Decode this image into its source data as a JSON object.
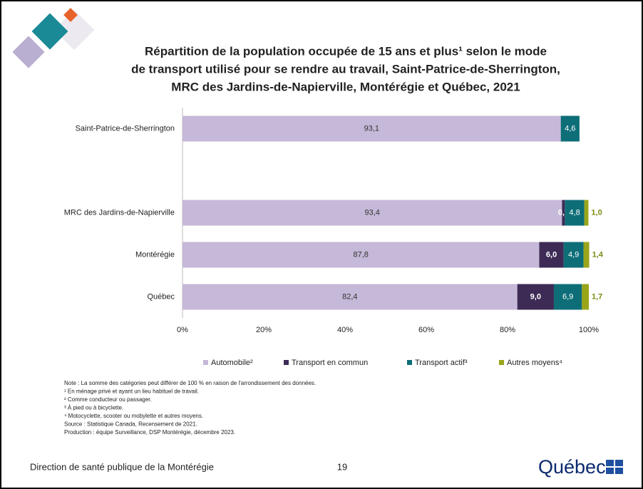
{
  "chart_data": {
    "type": "stacked-bar-horizontal",
    "title": [
      "Répartition de la population occupée de 15 ans et plus¹ selon le mode",
      "de transport utilisé pour se rendre au travail, Saint-Patrice-de-Sherrington,",
      "MRC des Jardins-de-Napierville, Montérégie et Québec, 2021"
    ],
    "categories": [
      "Saint-Patrice-de-Sherrington",
      null,
      "MRC des Jardins-de-Napierville",
      "Montérégie",
      "Québec"
    ],
    "series": [
      {
        "name": "Automobile²",
        "color": "#c6b8d8",
        "values": [
          93.1,
          null,
          93.4,
          87.8,
          82.4
        ],
        "value_labels": [
          "93,1",
          null,
          "93,4",
          "87,8",
          "82,4"
        ]
      },
      {
        "name": "Transport en commun",
        "color": "#3d2b56",
        "values": [
          null,
          null,
          0.7,
          6.0,
          9.0
        ],
        "value_labels": [
          null,
          null,
          "0,7",
          "6,0",
          "9,0"
        ]
      },
      {
        "name": "Transport actif³",
        "color": "#0d6e78",
        "values": [
          4.6,
          null,
          4.8,
          4.9,
          6.9
        ],
        "value_labels": [
          "4,6",
          null,
          "4,8",
          "4,9",
          "6,9"
        ]
      },
      {
        "name": "Autres moyens⁴",
        "color": "#9aa51a",
        "values": [
          null,
          null,
          1.0,
          1.4,
          1.7
        ],
        "value_labels": [
          null,
          null,
          "1,0",
          "1,4",
          "1,7"
        ]
      }
    ],
    "xlim": [
      0,
      100
    ],
    "xticks": [
      {
        "value": 0,
        "label": "0%"
      },
      {
        "value": 20,
        "label": "20%"
      },
      {
        "value": 40,
        "label": "40%"
      },
      {
        "value": 60,
        "label": "60%"
      },
      {
        "value": 80,
        "label": "80%"
      },
      {
        "value": 100,
        "label": "100%"
      }
    ],
    "grid": false,
    "legend": "bottom"
  },
  "notes": [
    "Note : La somme des catégories peut différer de 100 % en raison de l'arrondissement des données.",
    "¹ En ménage privé et ayant un lieu habituel de travail.",
    "² Comme conducteur ou passager.",
    "³ À pied ou à bicyclette.",
    "⁴ Motocyclette, scooter ou mobylette et autres moyens.",
    "Source : Statistique Canada, Recensement de 2021.",
    "Production : équipe Surveillance, DSP Montérégie, décembre 2023."
  ],
  "footer": {
    "organization": "Direction de santé publique de la Montérégie",
    "page": "19",
    "logo": "Québec"
  }
}
